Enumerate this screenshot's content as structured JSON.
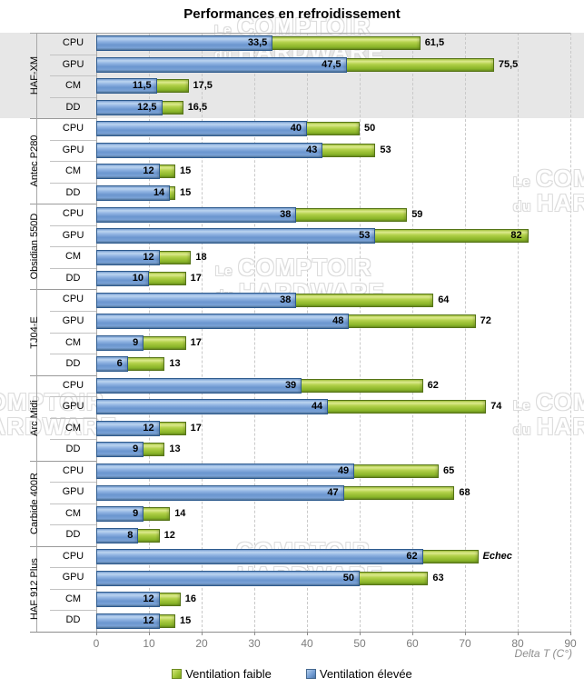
{
  "title": "Performances en refroidissement",
  "watermark": {
    "small1": "Le",
    "word1": "COMPTOIR",
    "small2": "du",
    "word2": "HARDWARE"
  },
  "colors": {
    "bar_ventilation_faible": "#9CC636",
    "bar_ventilation_elevee": "#6E99D1",
    "highlight_band": "#E7E7E7",
    "gridline": "#C9C9C9",
    "axis_text": "#7D7D7D"
  },
  "chart_data": {
    "type": "bar",
    "orientation": "horizontal",
    "title": "Performances en refroidissement",
    "xlabel": "Delta T (C°)",
    "xlim": [
      0,
      90
    ],
    "xticks": [
      0,
      10,
      20,
      30,
      40,
      50,
      60,
      70,
      80,
      90
    ],
    "grid": "dashed-vertical",
    "legend_position": "bottom",
    "series_names": [
      "Ventilation faible",
      "Ventilation élevée"
    ],
    "legend": [
      {
        "label": "Ventilation faible",
        "color": "#9CC636"
      },
      {
        "label": "Ventilation élevée",
        "color": "#6E99D1"
      }
    ],
    "groups": [
      {
        "name": "HAF-XM",
        "highlight": true,
        "rows": [
          {
            "category": "CPU",
            "ventilation_elevee": 33.5,
            "elevee_label": "33,5",
            "ventilation_faible": 61.5,
            "faible_label": "61,5"
          },
          {
            "category": "GPU",
            "ventilation_elevee": 47.5,
            "elevee_label": "47,5",
            "ventilation_faible": 75.5,
            "faible_label": "75,5"
          },
          {
            "category": "CM",
            "ventilation_elevee": 11.5,
            "elevee_label": "11,5",
            "ventilation_faible": 17.5,
            "faible_label": "17,5"
          },
          {
            "category": "DD",
            "ventilation_elevee": 12.5,
            "elevee_label": "12,5",
            "ventilation_faible": 16.5,
            "faible_label": "16,5"
          }
        ]
      },
      {
        "name": "Antec P280",
        "highlight": false,
        "rows": [
          {
            "category": "CPU",
            "ventilation_elevee": 40,
            "elevee_label": "40",
            "ventilation_faible": 50,
            "faible_label": "50"
          },
          {
            "category": "GPU",
            "ventilation_elevee": 43,
            "elevee_label": "43",
            "ventilation_faible": 53,
            "faible_label": "53"
          },
          {
            "category": "CM",
            "ventilation_elevee": 12,
            "elevee_label": "12",
            "ventilation_faible": 15,
            "faible_label": "15"
          },
          {
            "category": "DD",
            "ventilation_elevee": 14,
            "elevee_label": "14",
            "ventilation_faible": 15,
            "faible_label": "15"
          }
        ]
      },
      {
        "name": "Obsidian 550D",
        "highlight": false,
        "rows": [
          {
            "category": "CPU",
            "ventilation_elevee": 38,
            "elevee_label": "38",
            "ventilation_faible": 59,
            "faible_label": "59"
          },
          {
            "category": "GPU",
            "ventilation_elevee": 53,
            "elevee_label": "53",
            "ventilation_faible": 82,
            "faible_label": "82",
            "faible_label_inside": true
          },
          {
            "category": "CM",
            "ventilation_elevee": 12,
            "elevee_label": "12",
            "ventilation_faible": 18,
            "faible_label": "18"
          },
          {
            "category": "DD",
            "ventilation_elevee": 10,
            "elevee_label": "10",
            "ventilation_faible": 17,
            "faible_label": "17"
          }
        ]
      },
      {
        "name": "TJ04-E",
        "highlight": false,
        "rows": [
          {
            "category": "CPU",
            "ventilation_elevee": 38,
            "elevee_label": "38",
            "ventilation_faible": 64,
            "faible_label": "64"
          },
          {
            "category": "GPU",
            "ventilation_elevee": 48,
            "elevee_label": "48",
            "ventilation_faible": 72,
            "faible_label": "72"
          },
          {
            "category": "CM",
            "ventilation_elevee": 9,
            "elevee_label": "9",
            "ventilation_faible": 17,
            "faible_label": "17"
          },
          {
            "category": "DD",
            "ventilation_elevee": 6,
            "elevee_label": "6",
            "ventilation_faible": 13,
            "faible_label": "13"
          }
        ]
      },
      {
        "name": "Arc Midi",
        "highlight": false,
        "rows": [
          {
            "category": "CPU",
            "ventilation_elevee": 39,
            "elevee_label": "39",
            "ventilation_faible": 62,
            "faible_label": "62"
          },
          {
            "category": "GPU",
            "ventilation_elevee": 44,
            "elevee_label": "44",
            "ventilation_faible": 74,
            "faible_label": "74"
          },
          {
            "category": "CM",
            "ventilation_elevee": 12,
            "elevee_label": "12",
            "ventilation_faible": 17,
            "faible_label": "17"
          },
          {
            "category": "DD",
            "ventilation_elevee": 9,
            "elevee_label": "9",
            "ventilation_faible": 13,
            "faible_label": "13"
          }
        ]
      },
      {
        "name": "Carbide 400R",
        "highlight": false,
        "rows": [
          {
            "category": "CPU",
            "ventilation_elevee": 49,
            "elevee_label": "49",
            "ventilation_faible": 65,
            "faible_label": "65"
          },
          {
            "category": "GPU",
            "ventilation_elevee": 47,
            "elevee_label": "47",
            "ventilation_faible": 68,
            "faible_label": "68"
          },
          {
            "category": "CM",
            "ventilation_elevee": 9,
            "elevee_label": "9",
            "ventilation_faible": 14,
            "faible_label": "14"
          },
          {
            "category": "DD",
            "ventilation_elevee": 8,
            "elevee_label": "8",
            "ventilation_faible": 12,
            "faible_label": "12"
          }
        ]
      },
      {
        "name": "HAF 912 Plus",
        "highlight": false,
        "rows": [
          {
            "category": "CPU",
            "ventilation_elevee": 62,
            "elevee_label": "62",
            "ventilation_faible": 72.5,
            "faible_label": "Echec",
            "faible_label_italic": true
          },
          {
            "category": "GPU",
            "ventilation_elevee": 50,
            "elevee_label": "50",
            "ventilation_faible": 63,
            "faible_label": "63"
          },
          {
            "category": "CM",
            "ventilation_elevee": 12,
            "elevee_label": "12",
            "ventilation_faible": 16,
            "faible_label": "16"
          },
          {
            "category": "DD",
            "ventilation_elevee": 12,
            "elevee_label": "12",
            "ventilation_faible": 15,
            "faible_label": "15"
          }
        ]
      }
    ]
  }
}
